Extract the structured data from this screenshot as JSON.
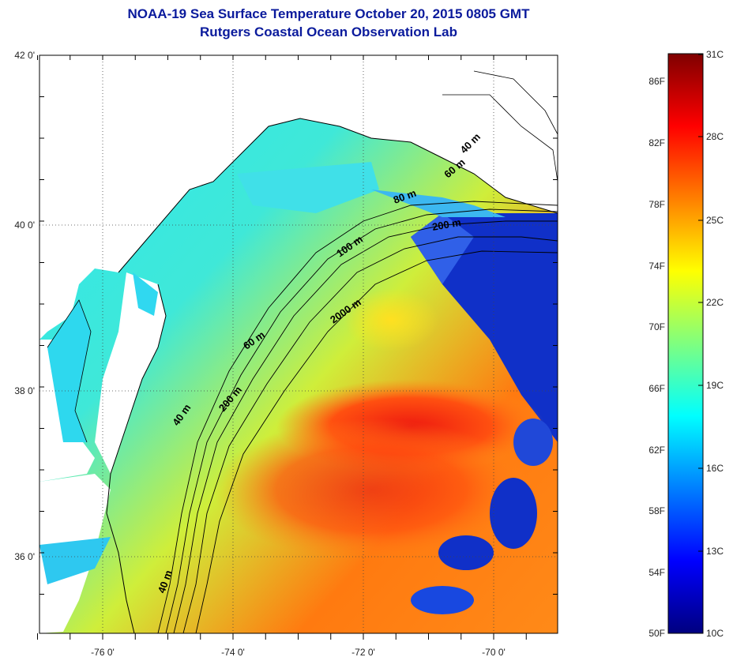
{
  "title": {
    "line1": "NOAA-19 Sea Surface Temperature October 20, 2015 0805 GMT",
    "line2": "Rutgers Coastal Ocean Observation Lab"
  },
  "map": {
    "lat_ticks": [
      "42 0'",
      "40 0'",
      "38 0'",
      "36 0'"
    ],
    "lon_ticks": [
      "-76 0'",
      "-74 0'",
      "-72 0'",
      "-70 0'"
    ],
    "contour_labels": [
      "40 m",
      "60 m",
      "80 m",
      "200 m",
      "100 m",
      "2000 m",
      "60 m",
      "200 m",
      "40 m",
      "40 m"
    ]
  },
  "colorbar": {
    "fahrenheit_ticks": [
      "86F",
      "82F",
      "78F",
      "74F",
      "70F",
      "66F",
      "62F",
      "58F",
      "54F",
      "50F"
    ],
    "celsius_ticks": [
      "31C",
      "28C",
      "25C",
      "22C",
      "19C",
      "16C",
      "13C",
      "10C"
    ],
    "colors": [
      "#00007f",
      "#0000ff",
      "#007fff",
      "#00ffff",
      "#7fff7f",
      "#ffff00",
      "#ff7f00",
      "#ff0000",
      "#7f0000"
    ]
  }
}
